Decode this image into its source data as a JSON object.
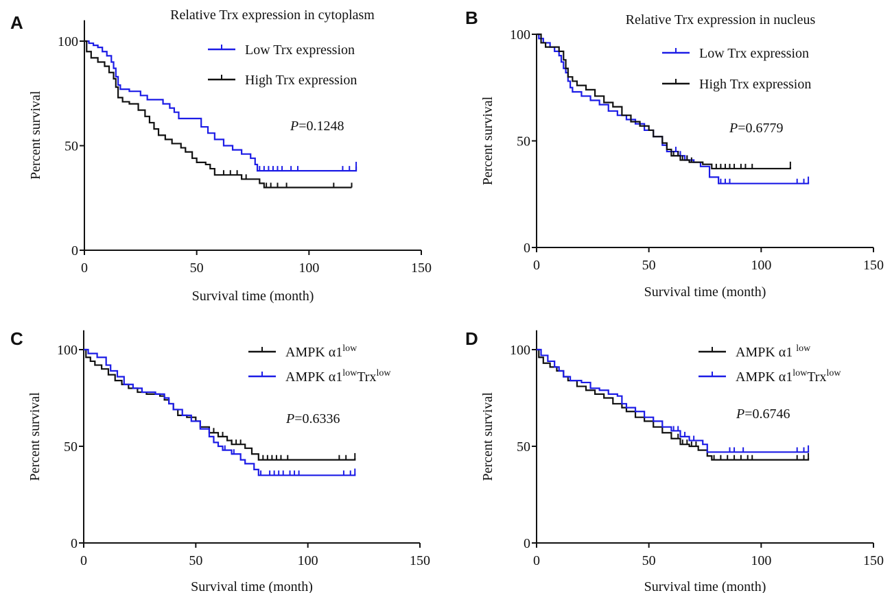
{
  "chart_data": [
    {
      "type": "line",
      "subtype": "kaplan-meier",
      "panel_label": "A",
      "title": "Relative Trx expression in cytoplasm",
      "xlabel": "Survival time (month)",
      "ylabel": "Percent survival",
      "xlim": [
        0,
        150
      ],
      "ylim": [
        0,
        110
      ],
      "x_ticks": [
        "0",
        "50",
        "100",
        "150"
      ],
      "y_ticks": [
        "0",
        "50",
        "100"
      ],
      "p_value": {
        "label": "P",
        "value": "=0.1248"
      },
      "legend_position": "top-right",
      "series": [
        {
          "name": "Low Trx expression",
          "color": "#1c1ce6",
          "steps": [
            [
              0,
              100
            ],
            [
              2,
              99
            ],
            [
              4,
              98
            ],
            [
              6,
              97
            ],
            [
              8,
              95
            ],
            [
              10,
              93
            ],
            [
              12,
              90
            ],
            [
              13,
              87
            ],
            [
              14,
              83
            ],
            [
              15,
              79
            ],
            [
              16,
              77
            ],
            [
              20,
              76
            ],
            [
              25,
              74
            ],
            [
              28,
              72
            ],
            [
              35,
              70
            ],
            [
              38,
              68
            ],
            [
              40,
              66
            ],
            [
              42,
              63
            ],
            [
              50,
              63
            ],
            [
              52,
              59
            ],
            [
              55,
              56
            ],
            [
              58,
              53
            ],
            [
              62,
              50
            ],
            [
              66,
              48
            ],
            [
              70,
              46
            ],
            [
              74,
              44
            ],
            [
              76,
              41
            ],
            [
              77,
              38
            ],
            [
              121,
              38
            ],
            [
              121,
              40
            ]
          ],
          "censor_x": [
            78,
            80,
            82,
            84,
            86,
            88,
            92,
            95,
            115,
            118,
            121
          ]
        },
        {
          "name": "High Trx expression",
          "color": "#111111",
          "steps": [
            [
              0,
              100
            ],
            [
              1,
              95
            ],
            [
              3,
              92
            ],
            [
              6,
              90
            ],
            [
              9,
              88
            ],
            [
              11,
              85
            ],
            [
              13,
              82
            ],
            [
              14,
              78
            ],
            [
              15,
              73
            ],
            [
              17,
              71
            ],
            [
              20,
              70
            ],
            [
              24,
              67
            ],
            [
              27,
              64
            ],
            [
              29,
              61
            ],
            [
              31,
              58
            ],
            [
              33,
              55
            ],
            [
              36,
              53
            ],
            [
              39,
              51
            ],
            [
              43,
              49
            ],
            [
              45,
              47
            ],
            [
              48,
              44
            ],
            [
              50,
              42
            ],
            [
              54,
              41
            ],
            [
              56,
              39
            ],
            [
              58,
              36
            ],
            [
              70,
              34
            ],
            [
              78,
              32
            ],
            [
              80,
              30
            ],
            [
              119,
              30
            ]
          ],
          "censor_x": [
            62,
            65,
            68,
            72,
            81,
            83,
            86,
            90,
            111,
            119
          ]
        }
      ]
    },
    {
      "type": "line",
      "subtype": "kaplan-meier",
      "panel_label": "B",
      "title": "Relative Trx expression in nucleus",
      "xlabel": "Survival time (month)",
      "ylabel": "Percent survival",
      "xlim": [
        0,
        150
      ],
      "ylim": [
        0,
        100
      ],
      "x_ticks": [
        "0",
        "50",
        "100",
        "150"
      ],
      "y_ticks": [
        "0",
        "50",
        "100"
      ],
      "p_value": {
        "label": "P",
        "value": "=0.6779"
      },
      "legend_position": "top-right",
      "series": [
        {
          "name": "Low Trx expression",
          "color": "#1c1ce6",
          "steps": [
            [
              0,
              100
            ],
            [
              1,
              98
            ],
            [
              3,
              96
            ],
            [
              6,
              94
            ],
            [
              8,
              92
            ],
            [
              10,
              90
            ],
            [
              11,
              87
            ],
            [
              12,
              84
            ],
            [
              13,
              82
            ],
            [
              14,
              78
            ],
            [
              15,
              75
            ],
            [
              16,
              73
            ],
            [
              20,
              71
            ],
            [
              24,
              69
            ],
            [
              28,
              67
            ],
            [
              32,
              64
            ],
            [
              36,
              62
            ],
            [
              40,
              60
            ],
            [
              44,
              58
            ],
            [
              48,
              55
            ],
            [
              52,
              52
            ],
            [
              56,
              48
            ],
            [
              58,
              45
            ],
            [
              63,
              43
            ],
            [
              66,
              41
            ],
            [
              70,
              40
            ],
            [
              73,
              38
            ],
            [
              77,
              33
            ],
            [
              81,
              30
            ],
            [
              121,
              30
            ],
            [
              121,
              31
            ]
          ],
          "censor_x": [
            62,
            64,
            67,
            82,
            84,
            86,
            116,
            119,
            121
          ]
        },
        {
          "name": "High Trx expression",
          "color": "#111111",
          "steps": [
            [
              0,
              100
            ],
            [
              2,
              96
            ],
            [
              4,
              94
            ],
            [
              10,
              92
            ],
            [
              12,
              88
            ],
            [
              13,
              84
            ],
            [
              14,
              80
            ],
            [
              16,
              78
            ],
            [
              18,
              76
            ],
            [
              22,
              74
            ],
            [
              26,
              71
            ],
            [
              30,
              68
            ],
            [
              34,
              66
            ],
            [
              38,
              62
            ],
            [
              42,
              59
            ],
            [
              46,
              57
            ],
            [
              50,
              55
            ],
            [
              52,
              52
            ],
            [
              56,
              49
            ],
            [
              58,
              46
            ],
            [
              60,
              43
            ],
            [
              64,
              41
            ],
            [
              68,
              40
            ],
            [
              74,
              39
            ],
            [
              78,
              37
            ],
            [
              113,
              37
            ],
            [
              113,
              38
            ]
          ],
          "censor_x": [
            61,
            63,
            65,
            67,
            69,
            80,
            82,
            84,
            86,
            88,
            91,
            93,
            96,
            113
          ]
        }
      ]
    },
    {
      "type": "line",
      "subtype": "kaplan-meier",
      "panel_label": "C",
      "title": "",
      "xlabel": "Survival time (month)",
      "ylabel": "Percent survival",
      "xlim": [
        0,
        150
      ],
      "ylim": [
        0,
        110
      ],
      "x_ticks": [
        "0",
        "50",
        "100",
        "150"
      ],
      "y_ticks": [
        "0",
        "50",
        "100"
      ],
      "p_value": {
        "label": "P",
        "value": "=0.6336"
      },
      "legend_position": "top-right",
      "series": [
        {
          "name": "AMPK α1",
          "name_sup": "low",
          "name_tail": "",
          "name_sup2": "",
          "color": "#111111",
          "steps": [
            [
              0,
              100
            ],
            [
              1,
              96
            ],
            [
              3,
              94
            ],
            [
              5,
              92
            ],
            [
              8,
              90
            ],
            [
              11,
              87
            ],
            [
              14,
              84
            ],
            [
              17,
              82
            ],
            [
              20,
              80
            ],
            [
              24,
              78
            ],
            [
              28,
              77
            ],
            [
              34,
              76
            ],
            [
              36,
              74
            ],
            [
              38,
              72
            ],
            [
              40,
              69
            ],
            [
              42,
              66
            ],
            [
              46,
              65
            ],
            [
              50,
              63
            ],
            [
              52,
              60
            ],
            [
              56,
              57
            ],
            [
              60,
              55
            ],
            [
              64,
              53
            ],
            [
              66,
              51
            ],
            [
              72,
              49
            ],
            [
              75,
              46
            ],
            [
              78,
              43
            ],
            [
              121,
              43
            ],
            [
              121,
              44
            ]
          ],
          "censor_x": [
            58,
            62,
            66,
            68,
            70,
            80,
            82,
            84,
            86,
            88,
            91,
            114,
            117,
            121
          ]
        },
        {
          "name": "AMPK α1",
          "name_sup": "low",
          "name_tail": "Trx",
          "name_sup2": "low",
          "color": "#1c1ce6",
          "steps": [
            [
              0,
              100
            ],
            [
              2,
              98
            ],
            [
              6,
              96
            ],
            [
              10,
              92
            ],
            [
              12,
              89
            ],
            [
              15,
              86
            ],
            [
              18,
              82
            ],
            [
              22,
              80
            ],
            [
              26,
              78
            ],
            [
              32,
              77
            ],
            [
              36,
              75
            ],
            [
              38,
              72
            ],
            [
              40,
              69
            ],
            [
              44,
              66
            ],
            [
              48,
              63
            ],
            [
              52,
              59
            ],
            [
              56,
              55
            ],
            [
              58,
              52
            ],
            [
              60,
              50
            ],
            [
              62,
              48
            ],
            [
              66,
              46
            ],
            [
              70,
              43
            ],
            [
              72,
              41
            ],
            [
              76,
              38
            ],
            [
              78,
              35
            ],
            [
              121,
              35
            ],
            [
              121,
              36
            ]
          ],
          "censor_x": [
            58,
            63,
            67,
            79,
            83,
            85,
            87,
            89,
            92,
            94,
            96,
            116,
            119,
            121
          ]
        }
      ]
    },
    {
      "type": "line",
      "subtype": "kaplan-meier",
      "panel_label": "D",
      "title": "",
      "xlabel": "Survival time (month)",
      "ylabel": "Percent survival",
      "xlim": [
        0,
        150
      ],
      "ylim": [
        0,
        110
      ],
      "x_ticks": [
        "0",
        "50",
        "100",
        "150"
      ],
      "y_ticks": [
        "0",
        "50",
        "100"
      ],
      "p_value": {
        "label": "P",
        "value": "=0.6746"
      },
      "legend_position": "top-right",
      "series": [
        {
          "name": "AMPK α1 ",
          "name_sup": "low",
          "name_tail": "",
          "name_sup2": "",
          "color": "#111111",
          "steps": [
            [
              0,
              100
            ],
            [
              1,
              96
            ],
            [
              3,
              93
            ],
            [
              6,
              91
            ],
            [
              9,
              89
            ],
            [
              12,
              86
            ],
            [
              14,
              84
            ],
            [
              18,
              81
            ],
            [
              22,
              79
            ],
            [
              26,
              77
            ],
            [
              30,
              75
            ],
            [
              34,
              72
            ],
            [
              38,
              70
            ],
            [
              40,
              68
            ],
            [
              44,
              65
            ],
            [
              48,
              63
            ],
            [
              52,
              60
            ],
            [
              56,
              57
            ],
            [
              60,
              54
            ],
            [
              64,
              51
            ],
            [
              68,
              50
            ],
            [
              72,
              48
            ],
            [
              76,
              45
            ],
            [
              78,
              43
            ],
            [
              121,
              43
            ],
            [
              121,
              44
            ]
          ],
          "censor_x": [
            63,
            65,
            67,
            69,
            71,
            79,
            82,
            85,
            88,
            91,
            94,
            96,
            116,
            119,
            121
          ]
        },
        {
          "name": "AMPK α1",
          "name_sup": "low",
          "name_tail": "Trx",
          "name_sup2": "low",
          "color": "#1c1ce6",
          "steps": [
            [
              0,
              100
            ],
            [
              2,
              97
            ],
            [
              5,
              94
            ],
            [
              8,
              91
            ],
            [
              10,
              89
            ],
            [
              12,
              86
            ],
            [
              15,
              84
            ],
            [
              20,
              83
            ],
            [
              24,
              80
            ],
            [
              28,
              79
            ],
            [
              32,
              77
            ],
            [
              36,
              76
            ],
            [
              38,
              72
            ],
            [
              40,
              70
            ],
            [
              44,
              68
            ],
            [
              48,
              65
            ],
            [
              52,
              63
            ],
            [
              56,
              60
            ],
            [
              60,
              58
            ],
            [
              64,
              55
            ],
            [
              68,
              53
            ],
            [
              74,
              51
            ],
            [
              76,
              47
            ],
            [
              78,
              47
            ],
            [
              121,
              47
            ],
            [
              121,
              48
            ]
          ],
          "censor_x": [
            61,
            63,
            66,
            70,
            86,
            88,
            92,
            116,
            119,
            121
          ]
        }
      ]
    }
  ]
}
